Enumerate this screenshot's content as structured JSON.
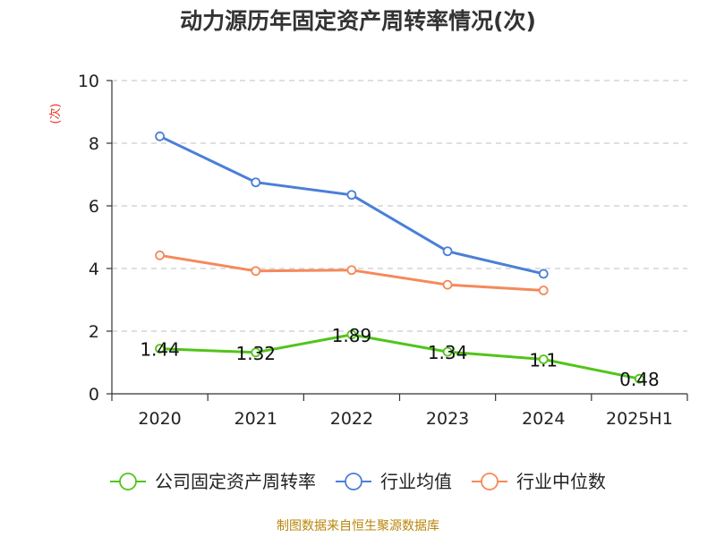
{
  "chart_data": {
    "type": "line",
    "title": "动力源历年固定资产周转率情况(次)",
    "ylabel": "(次)",
    "categories": [
      "2020",
      "2021",
      "2022",
      "2023",
      "2024",
      "2025H1"
    ],
    "ylim": [
      0,
      10
    ],
    "yticks": [
      0,
      2,
      4,
      6,
      8,
      10
    ],
    "grid": true,
    "legend_position": "bottom",
    "series": [
      {
        "name": "公司固定资产周转率",
        "color": "#52c41a",
        "values": [
          1.44,
          1.32,
          1.89,
          1.34,
          1.1,
          0.48
        ],
        "data_labels": [
          "1.44",
          "1.32",
          "1.89",
          "1.34",
          "1.1",
          "0.48"
        ]
      },
      {
        "name": "行业均值",
        "color": "#4a7fd8",
        "values": [
          8.22,
          6.75,
          6.35,
          4.55,
          3.83,
          null
        ]
      },
      {
        "name": "行业中位数",
        "color": "#f5895a",
        "values": [
          4.42,
          3.92,
          3.95,
          3.48,
          3.3,
          null
        ]
      }
    ],
    "source": "制图数据来自恒生聚源数据库"
  }
}
